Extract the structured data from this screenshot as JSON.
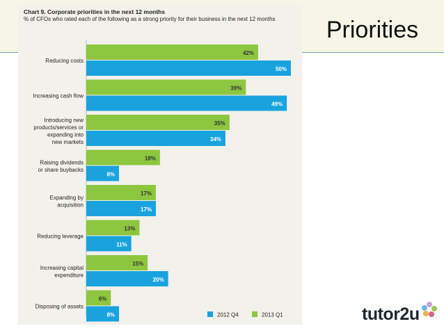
{
  "slide": {
    "title": "Priorities",
    "logo_text": "tutor2u"
  },
  "chart_data": {
    "type": "bar",
    "orientation": "horizontal",
    "title": "Chart 9. Corporate priorities in the next 12 months",
    "subtitle": "% of CFOs who rated each of the following as a strong priority for their business in the next 12 months",
    "categories": [
      "Reducing costs",
      "Increasing cash flow",
      "Introducing new products/services or expanding into new markets",
      "Raising dividends or share buybacks",
      "Expanding by acquisition",
      "Reducing leverage",
      "Increasing capital expenditure",
      "Disposing of assets"
    ],
    "category_lines": [
      [
        "Reducing costs"
      ],
      [
        "Increasing cash flow"
      ],
      [
        "Introducing new",
        "products/services or",
        "expanding into",
        "new markets"
      ],
      [
        "Raising dividends",
        "or share buybacks"
      ],
      [
        "Expanding by",
        "acquisition"
      ],
      [
        "Reducing leverage"
      ],
      [
        "Increasing capital",
        "expenditure"
      ],
      [
        "Disposing of assets"
      ]
    ],
    "series": [
      {
        "name": "2013 Q1",
        "color": "#8dc63f",
        "values": [
          42,
          39,
          35,
          18,
          17,
          13,
          15,
          6
        ]
      },
      {
        "name": "2012 Q4",
        "color": "#19a3de",
        "values": [
          50,
          49,
          34,
          8,
          17,
          11,
          20,
          8
        ]
      }
    ],
    "value_suffix": "%",
    "xlim": [
      0,
      50
    ],
    "legend": {
      "position": "bottom-right",
      "order": [
        "2012 Q4",
        "2013 Q1"
      ]
    }
  }
}
